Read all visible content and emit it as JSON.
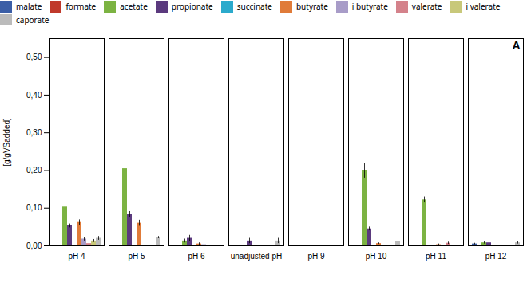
{
  "chart_data": {
    "type": "bar",
    "categories": [
      "pH 4",
      "pH 5",
      "pH 6",
      "unadjusted pH",
      "pH 9",
      "pH 10",
      "pH 11",
      "pH 12"
    ],
    "series": [
      {
        "name": "malate",
        "color": "#3B5EA6",
        "values": [
          0.0,
          0.0,
          0.0,
          0.0,
          0.0,
          0.0,
          0.0,
          0.005
        ],
        "errors": [
          0.0,
          0.0,
          0.0,
          0.0,
          0.0,
          0.0,
          0.0,
          0.002
        ]
      },
      {
        "name": "formate",
        "color": "#C0392B",
        "values": [
          0.0,
          0.0,
          0.0,
          0.0,
          0.0,
          0.0,
          0.0,
          0.0
        ],
        "errors": [
          0.0,
          0.0,
          0.0,
          0.0,
          0.0,
          0.0,
          0.0,
          0.0
        ]
      },
      {
        "name": "acetate",
        "color": "#7CB342",
        "values": [
          0.103,
          0.205,
          0.013,
          0.0,
          0.0,
          0.2,
          0.122,
          0.008
        ],
        "errors": [
          0.01,
          0.012,
          0.005,
          0.0,
          0.0,
          0.02,
          0.008,
          0.003
        ]
      },
      {
        "name": "propionate",
        "color": "#5B3A7E",
        "values": [
          0.053,
          0.083,
          0.02,
          0.013,
          0.0,
          0.045,
          0.0,
          0.008
        ],
        "errors": [
          0.005,
          0.008,
          0.008,
          0.007,
          0.0,
          0.005,
          0.0,
          0.003
        ]
      },
      {
        "name": "succinate",
        "color": "#2BAACC",
        "values": [
          0.0,
          0.0,
          0.0,
          0.0,
          0.0,
          0.0,
          0.0,
          0.0
        ],
        "errors": [
          0.0,
          0.0,
          0.0,
          0.0,
          0.0,
          0.0,
          0.0,
          0.0
        ]
      },
      {
        "name": "butyrate",
        "color": "#E07B39",
        "values": [
          0.062,
          0.06,
          0.005,
          0.0,
          0.0,
          0.006,
          0.003,
          0.0
        ],
        "errors": [
          0.007,
          0.008,
          0.003,
          0.0,
          0.0,
          0.002,
          0.002,
          0.0
        ]
      },
      {
        "name": "i butyrate",
        "color": "#A89CC8",
        "values": [
          0.018,
          0.0,
          0.003,
          0.0,
          0.0,
          0.0,
          0.0,
          0.0
        ],
        "errors": [
          0.005,
          0.0,
          0.002,
          0.0,
          0.0,
          0.0,
          0.0,
          0.0
        ]
      },
      {
        "name": "valerate",
        "color": "#D4828B",
        "values": [
          0.006,
          0.001,
          0.0,
          0.0,
          0.0,
          0.001,
          0.007,
          0.0
        ],
        "errors": [
          0.002,
          0.001,
          0.0,
          0.0,
          0.0,
          0.0,
          0.003,
          0.0
        ]
      },
      {
        "name": "i valerate",
        "color": "#C8C87A",
        "values": [
          0.013,
          0.0,
          0.0,
          0.0,
          0.0,
          0.0,
          0.0,
          0.002
        ],
        "errors": [
          0.004,
          0.0,
          0.0,
          0.0,
          0.0,
          0.0,
          0.0,
          0.001
        ]
      },
      {
        "name": "caporate",
        "color": "#BBBBBB",
        "values": [
          0.02,
          0.022,
          0.0,
          0.013,
          0.0,
          0.011,
          0.0,
          0.008
        ],
        "errors": [
          0.005,
          0.003,
          0.0,
          0.007,
          0.0,
          0.004,
          0.0,
          0.003
        ]
      }
    ],
    "ylabel": "[g/gVSadded]",
    "ylim": [
      0,
      0.55
    ],
    "yticks": [
      {
        "value": 0.0,
        "label": "0,00"
      },
      {
        "value": 0.1,
        "label": "0,10"
      },
      {
        "value": 0.2,
        "label": "0,20"
      },
      {
        "value": 0.3,
        "label": "0,30"
      },
      {
        "value": 0.4,
        "label": "0,40"
      },
      {
        "value": 0.5,
        "label": "0,50"
      }
    ],
    "annotation": "A",
    "legend": "top",
    "grid": false
  }
}
